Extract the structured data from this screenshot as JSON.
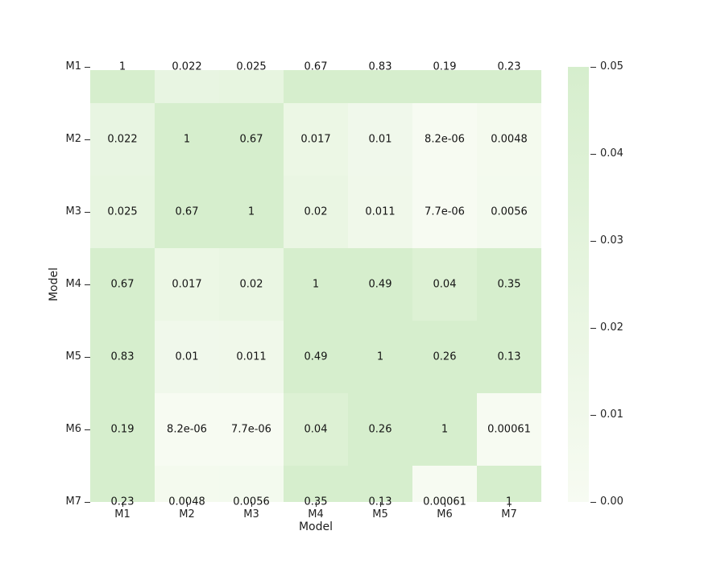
{
  "chart_data": {
    "type": "heatmap",
    "title": "",
    "xlabel": "Model",
    "ylabel": "Model",
    "x_categories": [
      "M1",
      "M2",
      "M3",
      "M4",
      "M5",
      "M6",
      "M7"
    ],
    "y_categories": [
      "M1",
      "M2",
      "M3",
      "M4",
      "M5",
      "M6",
      "M7"
    ],
    "annotations": [
      [
        "1",
        "0.022",
        "0.025",
        "0.67",
        "0.83",
        "0.19",
        "0.23"
      ],
      [
        "0.022",
        "1",
        "0.67",
        "0.017",
        "0.01",
        "8.2e-06",
        "0.0048"
      ],
      [
        "0.025",
        "0.67",
        "1",
        "0.02",
        "0.011",
        "7.7e-06",
        "0.0056"
      ],
      [
        "0.67",
        "0.017",
        "0.02",
        "1",
        "0.49",
        "0.04",
        "0.35"
      ],
      [
        "0.83",
        "0.01",
        "0.011",
        "0.49",
        "1",
        "0.26",
        "0.13"
      ],
      [
        "0.19",
        "8.2e-06",
        "7.7e-06",
        "0.04",
        "0.26",
        "1",
        "0.00061"
      ],
      [
        "0.23",
        "0.0048",
        "0.0056",
        "0.35",
        "0.13",
        "0.00061",
        "1"
      ]
    ],
    "values": [
      [
        1,
        0.022,
        0.025,
        0.67,
        0.83,
        0.19,
        0.23
      ],
      [
        0.022,
        1,
        0.67,
        0.017,
        0.01,
        8.2e-06,
        0.0048
      ],
      [
        0.025,
        0.67,
        1,
        0.02,
        0.011,
        7.7e-06,
        0.0056
      ],
      [
        0.67,
        0.017,
        0.02,
        1,
        0.49,
        0.04,
        0.35
      ],
      [
        0.83,
        0.01,
        0.011,
        0.49,
        1,
        0.26,
        0.13
      ],
      [
        0.19,
        8.2e-06,
        7.7e-06,
        0.04,
        0.26,
        1,
        0.00061
      ],
      [
        0.23,
        0.0048,
        0.0056,
        0.35,
        0.13,
        0.00061,
        1
      ]
    ],
    "vmin": 0,
    "vmax": 0.05,
    "colormap": {
      "low": "#f7fbf2",
      "high": "#d6eecd"
    },
    "colorbar": {
      "position": "right",
      "ticks": [
        {
          "value": 0.0,
          "label": "0.00"
        },
        {
          "value": 0.01,
          "label": "0.01"
        },
        {
          "value": 0.02,
          "label": "0.02"
        },
        {
          "value": 0.03,
          "label": "0.03"
        },
        {
          "value": 0.04,
          "label": "0.04"
        },
        {
          "value": 0.05,
          "label": "0.05"
        }
      ]
    },
    "grid": false,
    "legend_position": "none"
  }
}
